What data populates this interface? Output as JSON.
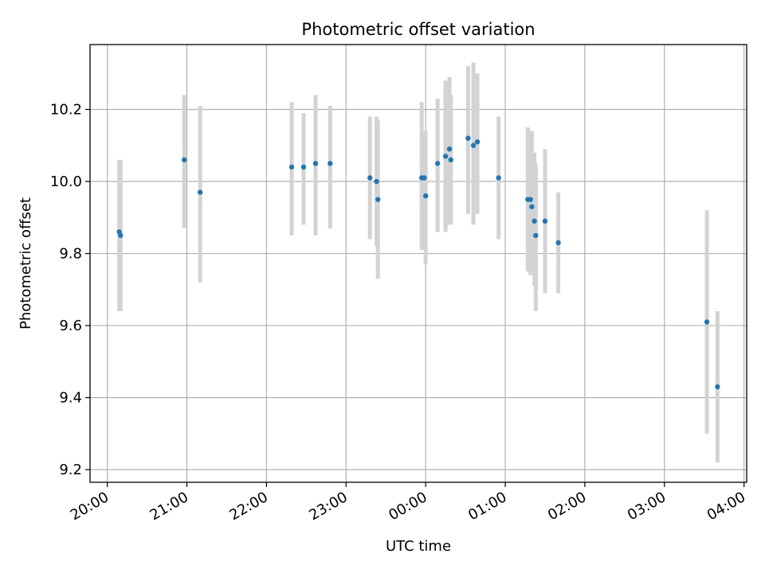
{
  "chart_data": {
    "type": "scatter",
    "title": "Photometric offset variation",
    "xlabel": "UTC time",
    "ylabel": "Photometric offset",
    "x_ticks": [
      "20:00",
      "21:00",
      "22:00",
      "23:00",
      "00:00",
      "01:00",
      "02:00",
      "03:00",
      "04:00"
    ],
    "y_ticks": [
      "9.2",
      "9.4",
      "9.6",
      "9.8",
      "10.0",
      "10.2"
    ],
    "xlim": [
      "19:47",
      "04:02"
    ],
    "ylim": [
      9.165,
      10.38
    ],
    "grid": true,
    "marker_color": "#1f77b4",
    "errorbar_color": "#d3d3d3",
    "points": [
      {
        "t": "20:09",
        "y": 9.86,
        "lo": 9.64,
        "hi": 10.06
      },
      {
        "t": "20:10",
        "y": 9.85,
        "lo": 9.64,
        "hi": 10.06
      },
      {
        "t": "20:58",
        "y": 10.06,
        "lo": 9.87,
        "hi": 10.24
      },
      {
        "t": "21:10",
        "y": 9.97,
        "lo": 9.72,
        "hi": 10.21
      },
      {
        "t": "22:19",
        "y": 10.04,
        "lo": 9.85,
        "hi": 10.22
      },
      {
        "t": "22:28",
        "y": 10.04,
        "lo": 9.88,
        "hi": 10.19
      },
      {
        "t": "22:37",
        "y": 10.05,
        "lo": 9.85,
        "hi": 10.24
      },
      {
        "t": "22:48",
        "y": 10.05,
        "lo": 9.87,
        "hi": 10.21
      },
      {
        "t": "23:18",
        "y": 10.01,
        "lo": 9.84,
        "hi": 10.18
      },
      {
        "t": "23:23",
        "y": 10.0,
        "lo": 9.82,
        "hi": 10.18
      },
      {
        "t": "23:24",
        "y": 9.95,
        "lo": 9.73,
        "hi": 10.17
      },
      {
        "t": "23:57",
        "y": 10.01,
        "lo": 9.81,
        "hi": 10.22
      },
      {
        "t": "23:59",
        "y": 10.01,
        "lo": 9.81,
        "hi": 10.14
      },
      {
        "t": "00:00",
        "y": 9.96,
        "lo": 9.77,
        "hi": 10.14
      },
      {
        "t": "00:09",
        "y": 10.05,
        "lo": 9.86,
        "hi": 10.23
      },
      {
        "t": "00:15",
        "y": 10.07,
        "lo": 9.86,
        "hi": 10.28
      },
      {
        "t": "00:18",
        "y": 10.09,
        "lo": 9.88,
        "hi": 10.29
      },
      {
        "t": "00:19",
        "y": 10.06,
        "lo": 9.88,
        "hi": 10.24
      },
      {
        "t": "00:32",
        "y": 10.12,
        "lo": 9.91,
        "hi": 10.32
      },
      {
        "t": "00:36",
        "y": 10.1,
        "lo": 9.88,
        "hi": 10.33
      },
      {
        "t": "00:39",
        "y": 10.11,
        "lo": 9.91,
        "hi": 10.3
      },
      {
        "t": "00:55",
        "y": 10.01,
        "lo": 9.84,
        "hi": 10.18
      },
      {
        "t": "01:17",
        "y": 9.95,
        "lo": 9.75,
        "hi": 10.15
      },
      {
        "t": "01:19",
        "y": 9.95,
        "lo": 9.74,
        "hi": 10.14
      },
      {
        "t": "01:20",
        "y": 9.93,
        "lo": 9.75,
        "hi": 10.14
      },
      {
        "t": "01:22",
        "y": 9.89,
        "lo": 9.71,
        "hi": 10.08
      },
      {
        "t": "01:23",
        "y": 9.85,
        "lo": 9.64,
        "hi": 10.05
      },
      {
        "t": "01:30",
        "y": 9.89,
        "lo": 9.69,
        "hi": 10.09
      },
      {
        "t": "01:40",
        "y": 9.83,
        "lo": 9.69,
        "hi": 9.97
      },
      {
        "t": "03:32",
        "y": 9.61,
        "lo": 9.3,
        "hi": 9.92
      },
      {
        "t": "03:40",
        "y": 9.43,
        "lo": 9.22,
        "hi": 9.64
      }
    ]
  }
}
